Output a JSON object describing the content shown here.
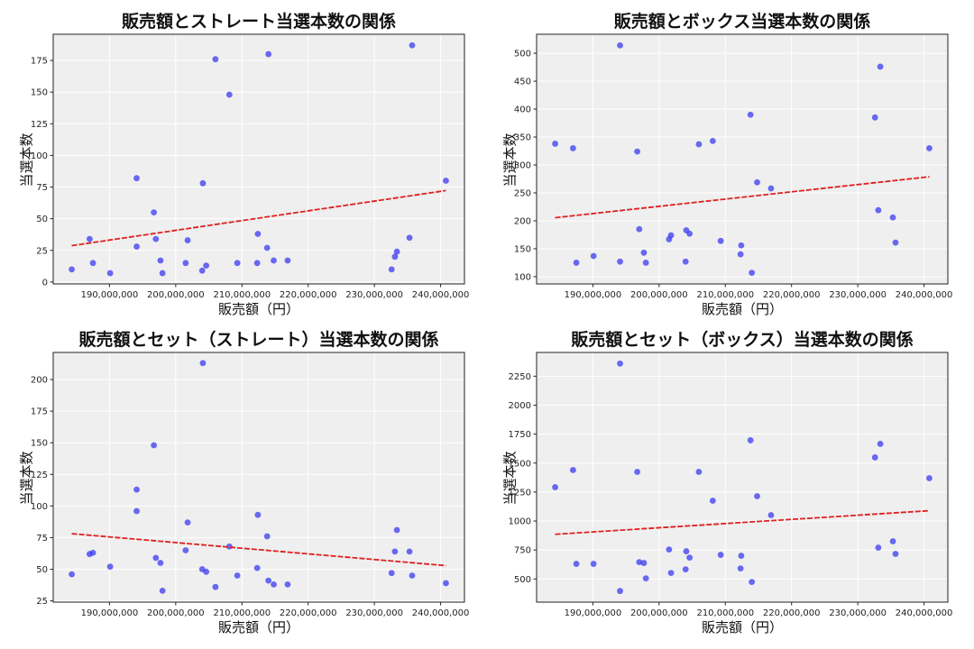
{
  "colors": {
    "point": "#3a3af0",
    "trend": "#e02020",
    "plot_bg": "#efefef",
    "grid": "#ffffff"
  },
  "chart_data": [
    {
      "type": "scatter",
      "title": "販売額とストレート当選本数の関係",
      "xlabel": "販売額（円）",
      "ylabel": "当選本数",
      "xlim": [
        181500000,
        243600000
      ],
      "ylim": [
        -1.5,
        195.7
      ],
      "xticks": [
        190000000,
        200000000,
        210000000,
        220000000,
        230000000,
        240000000
      ],
      "xtick_labels": [
        "190,000,000",
        "200,000,000",
        "210,000,000",
        "220,000,000",
        "230,000,000",
        "240,000,000"
      ],
      "yticks": [
        0,
        25,
        50,
        75,
        100,
        125,
        150,
        175
      ],
      "grid": true,
      "trendline": "linear",
      "x": [
        184300000,
        187000000,
        187500000,
        190100000,
        194100000,
        194100000,
        196700000,
        197000000,
        197700000,
        198000000,
        201500000,
        201800000,
        204000000,
        204100000,
        204600000,
        206000000,
        208100000,
        209300000,
        212300000,
        212400000,
        213800000,
        214000000,
        214800000,
        216900000,
        232600000,
        233100000,
        233400000,
        235300000,
        235700000,
        240800000
      ],
      "y": [
        10,
        34,
        15,
        7,
        82,
        28,
        55,
        34,
        17,
        7,
        15,
        33,
        9,
        78,
        13,
        176,
        148,
        15,
        15,
        38,
        27,
        180,
        17,
        17,
        10,
        20,
        24,
        35,
        187,
        80
      ]
    },
    {
      "type": "scatter",
      "title": "販売額とボックス当選本数の関係",
      "xlabel": "販売額（円）",
      "ylabel": "当選本数",
      "xlim": [
        181500000,
        243600000
      ],
      "ylim": [
        87,
        534
      ],
      "xticks": [
        190000000,
        200000000,
        210000000,
        220000000,
        230000000,
        240000000
      ],
      "xtick_labels": [
        "190,000,000",
        "200,000,000",
        "210,000,000",
        "220,000,000",
        "230,000,000",
        "240,000,000"
      ],
      "yticks": [
        100,
        150,
        200,
        250,
        300,
        350,
        400,
        450,
        500
      ],
      "grid": true,
      "trendline": "linear",
      "x": [
        184300000,
        187000000,
        187500000,
        190100000,
        194100000,
        194100000,
        196700000,
        197000000,
        197700000,
        198000000,
        201500000,
        201800000,
        204000000,
        204100000,
        204600000,
        206000000,
        208100000,
        209300000,
        212300000,
        212400000,
        213800000,
        214000000,
        214800000,
        216900000,
        232600000,
        233100000,
        233400000,
        235300000,
        235700000,
        240800000
      ],
      "y": [
        338,
        330,
        125,
        137,
        514,
        127,
        324,
        185,
        143,
        125,
        167,
        174,
        127,
        183,
        177,
        337,
        343,
        164,
        140,
        156,
        390,
        107,
        269,
        258,
        385,
        219,
        476,
        206,
        161,
        330
      ]
    },
    {
      "type": "scatter",
      "title": "販売額とセット（ストレート）当選本数の関係",
      "xlabel": "販売額（円）",
      "ylabel": "当選本数",
      "xlim": [
        181500000,
        243600000
      ],
      "ylim": [
        24,
        221.4
      ],
      "xticks": [
        190000000,
        200000000,
        210000000,
        220000000,
        230000000,
        240000000
      ],
      "xtick_labels": [
        "190,000,000",
        "200,000,000",
        "210,000,000",
        "220,000,000",
        "230,000,000",
        "240,000,000"
      ],
      "yticks": [
        25,
        50,
        75,
        100,
        125,
        150,
        175,
        200
      ],
      "grid": true,
      "trendline": "linear",
      "x": [
        184300000,
        187000000,
        187500000,
        190100000,
        194100000,
        194100000,
        196700000,
        197000000,
        197700000,
        198000000,
        201500000,
        201800000,
        204000000,
        204100000,
        204600000,
        206000000,
        208100000,
        209300000,
        212300000,
        212400000,
        213800000,
        214000000,
        214800000,
        216900000,
        232600000,
        233100000,
        233400000,
        235300000,
        235700000,
        240800000
      ],
      "y": [
        46,
        62,
        63,
        52,
        113,
        96,
        148,
        59,
        55,
        33,
        65,
        87,
        50,
        213,
        48,
        36,
        68,
        45,
        51,
        93,
        76,
        41,
        38,
        38,
        47,
        64,
        81,
        64,
        45,
        39
      ]
    },
    {
      "type": "scatter",
      "title": "販売額とセット（ボックス）当選本数の関係",
      "xlabel": "販売額（円）",
      "ylabel": "当選本数",
      "xlim": [
        181500000,
        243600000
      ],
      "ylim": [
        300,
        2455
      ],
      "xticks": [
        190000000,
        200000000,
        210000000,
        220000000,
        230000000,
        240000000
      ],
      "xtick_labels": [
        "190,000,000",
        "200,000,000",
        "210,000,000",
        "220,000,000",
        "230,000,000",
        "240,000,000"
      ],
      "yticks": [
        500,
        750,
        1000,
        1250,
        1500,
        1750,
        2000,
        2250
      ],
      "grid": true,
      "trendline": "linear",
      "x": [
        184300000,
        187000000,
        187500000,
        190100000,
        194100000,
        194100000,
        196700000,
        197000000,
        197700000,
        198000000,
        201500000,
        201800000,
        204000000,
        204100000,
        204600000,
        206000000,
        208100000,
        209300000,
        212300000,
        212400000,
        213800000,
        214000000,
        214800000,
        216900000,
        232600000,
        233100000,
        233400000,
        235300000,
        235700000,
        240800000
      ],
      "y": [
        1292,
        1440,
        630,
        630,
        2359,
        396,
        1424,
        645,
        638,
        505,
        754,
        552,
        583,
        739,
        684,
        1424,
        1175,
        708,
        591,
        700,
        1697,
        474,
        1214,
        1051,
        1549,
        770,
        1666,
        825,
        716,
        1370
      ]
    }
  ]
}
